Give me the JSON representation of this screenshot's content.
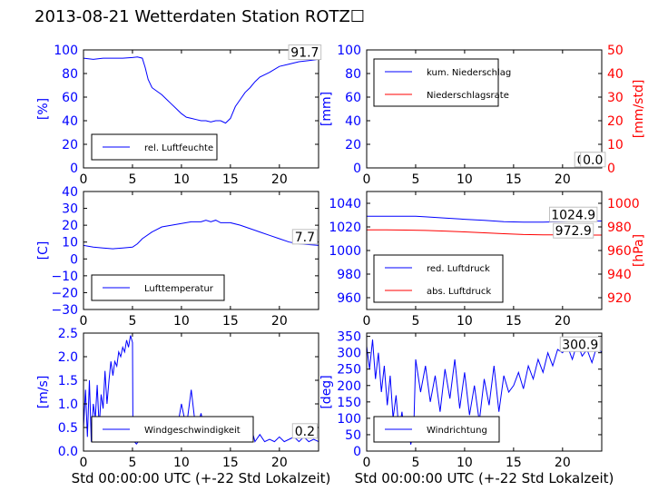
{
  "title": "2013-08-21 Wetterdaten Station ROTZ",
  "title_suffix": "☐",
  "xlabel": "Std 00:00:00 UTC (+-22 Std Lokalzeit)",
  "colors": {
    "blue": "#0000ff",
    "red": "#ff0000",
    "black": "#000000"
  },
  "chart_data": [
    {
      "type": "line",
      "id": "humidity",
      "ylabel": "[%]",
      "xlim": [
        0,
        24
      ],
      "ylim": [
        0,
        100
      ],
      "x_ticks": [
        0,
        5,
        10,
        15,
        20
      ],
      "y_ticks": [
        0,
        20,
        40,
        60,
        80,
        100
      ],
      "annotations": [
        {
          "text": "91.7",
          "x": 22.6,
          "y": 95
        }
      ],
      "legend": {
        "position": "lower-left",
        "entries": [
          "rel. Luftfeuchte"
        ]
      },
      "series": [
        {
          "name": "rel. Luftfeuchte",
          "color": "#0000ff",
          "x": [
            0,
            1,
            2,
            3,
            4,
            5,
            5.5,
            6,
            6.3,
            6.6,
            7,
            7.5,
            8,
            8.5,
            9,
            9.5,
            10,
            10.5,
            11,
            11.5,
            12,
            12.5,
            13,
            13.5,
            14,
            14.5,
            15,
            15.5,
            16,
            16.5,
            17,
            17.5,
            18,
            19,
            20,
            21,
            22,
            23,
            24
          ],
          "y": [
            93,
            92,
            93,
            93,
            93,
            93.5,
            94,
            93,
            85,
            75,
            68,
            65,
            62,
            58,
            54,
            50,
            46,
            43,
            42,
            41,
            40,
            40,
            39,
            40,
            40,
            38,
            42,
            52,
            58,
            64,
            68,
            73,
            77,
            81,
            86,
            88,
            90,
            91,
            92
          ]
        }
      ]
    },
    {
      "type": "line",
      "id": "precipitation",
      "ylabel": "[mm]",
      "ylabel_right": "[mm/std]",
      "xlim": [
        0,
        24
      ],
      "ylim": [
        0,
        100
      ],
      "ylim_right": [
        0,
        50
      ],
      "x_ticks": [
        0,
        5,
        10,
        15,
        20
      ],
      "y_ticks": [
        0,
        20,
        40,
        60,
        80,
        100
      ],
      "y_ticks_right": [
        0,
        10,
        20,
        30,
        40,
        50
      ],
      "annotations": [
        {
          "text": "0.0",
          "x": 22.5,
          "y": 4
        },
        {
          "text": "0.0",
          "x": 23.1,
          "y": 4
        }
      ],
      "legend": {
        "position": "upper-left",
        "entries": [
          "kum. Niederschlag",
          "Niederschlagsrate"
        ]
      },
      "series": [
        {
          "name": "kum. Niederschlag",
          "color": "#0000ff",
          "axis": "left",
          "x": [
            0,
            24
          ],
          "y": [
            0,
            0
          ]
        },
        {
          "name": "Niederschlagsrate",
          "color": "#ff0000",
          "axis": "right",
          "x": [
            0,
            24
          ],
          "y": [
            0,
            0
          ]
        }
      ]
    },
    {
      "type": "line",
      "id": "temperature",
      "ylabel": "[C]",
      "xlim": [
        0,
        24
      ],
      "ylim": [
        -30,
        40
      ],
      "x_ticks": [
        0,
        5,
        10,
        15,
        20
      ],
      "y_ticks": [
        -30,
        -20,
        -10,
        0,
        10,
        20,
        30,
        40
      ],
      "annotations": [
        {
          "text": "7.7",
          "x": 22.6,
          "y": 11
        }
      ],
      "legend": {
        "position": "lower-left",
        "entries": [
          "Lufttemperatur"
        ]
      },
      "series": [
        {
          "name": "Lufttemperatur",
          "color": "#0000ff",
          "x": [
            0,
            1,
            2,
            3,
            4,
            5,
            5.5,
            6,
            7,
            8,
            9,
            10,
            11,
            12,
            12.5,
            13,
            13.5,
            14,
            15,
            16,
            17,
            18,
            19,
            20,
            21,
            22,
            23,
            24
          ],
          "y": [
            8,
            7,
            6.5,
            6,
            6.5,
            7,
            9,
            12,
            16,
            19,
            20,
            21,
            22,
            22,
            23,
            22,
            23,
            21.5,
            21.5,
            20,
            18,
            16,
            14,
            12,
            10,
            9,
            8.5,
            8
          ]
        }
      ]
    },
    {
      "type": "line",
      "id": "pressure",
      "ylim": [
        950,
        1050
      ],
      "ylim_right": [
        910,
        1010
      ],
      "xlim": [
        0,
        24
      ],
      "ylabel_right": "[hPa]",
      "x_ticks": [
        0,
        5,
        10,
        15,
        20
      ],
      "y_ticks": [
        960,
        980,
        1000,
        1020,
        1040
      ],
      "y_ticks_right": [
        920,
        940,
        960,
        980,
        1000
      ],
      "annotations": [
        {
          "text": "1024.9",
          "x": 21.1,
          "y": 1027.5
        },
        {
          "text": "972.9",
          "x": 21.1,
          "y": 1013.7
        }
      ],
      "legend": {
        "position": "lower-left",
        "entries": [
          "red. Luftdruck",
          "abs. Luftdruck"
        ]
      },
      "series": [
        {
          "name": "red. Luftdruck",
          "color": "#0000ff",
          "axis": "left",
          "x": [
            0,
            2,
            4,
            5,
            6,
            8,
            10,
            12,
            14,
            16,
            18,
            20,
            22,
            24
          ],
          "y": [
            1029,
            1029,
            1029,
            1029,
            1028.5,
            1027.5,
            1026.5,
            1025.5,
            1024.5,
            1024,
            1024,
            1024.5,
            1025,
            1025
          ]
        },
        {
          "name": "abs. Luftdruck",
          "color": "#ff0000",
          "axis": "right",
          "x": [
            0,
            2,
            4,
            6,
            8,
            10,
            12,
            14,
            16,
            18,
            20,
            22,
            24
          ],
          "y": [
            977.5,
            977.5,
            977.3,
            977,
            976.5,
            975.8,
            975,
            974.2,
            973.5,
            973.3,
            973.2,
            973.1,
            973.1
          ]
        }
      ]
    },
    {
      "type": "line",
      "id": "wind_speed",
      "ylabel": "[m/s]",
      "xlim": [
        0,
        24
      ],
      "ylim": [
        0,
        2.5
      ],
      "x_ticks": [
        0,
        5,
        10,
        15,
        20
      ],
      "y_ticks": [
        0.0,
        0.5,
        1.0,
        1.5,
        2.0,
        2.5
      ],
      "annotations": [
        {
          "text": "0.2",
          "x": 22.6,
          "y": 0.35
        }
      ],
      "legend": {
        "position": "lower-left",
        "entries": [
          "Windgeschwindigkeit"
        ]
      },
      "series": [
        {
          "name": "Windgeschwindigkeit",
          "color": "#0000ff",
          "x": [
            0,
            0.2,
            0.4,
            0.6,
            0.8,
            1,
            1.2,
            1.4,
            1.6,
            1.8,
            2,
            2.2,
            2.4,
            2.6,
            2.8,
            3,
            3.2,
            3.4,
            3.6,
            3.8,
            4,
            4.2,
            4.4,
            4.6,
            4.8,
            5,
            5.05,
            5.2,
            5.4,
            5.6,
            5.8,
            6,
            6.5,
            7,
            7.5,
            8,
            8.5,
            9,
            9.5,
            10,
            10.5,
            11,
            11.5,
            12,
            12.5,
            13,
            13.5,
            14,
            14.5,
            15,
            15.5,
            16,
            16.5,
            17,
            17.5,
            18,
            18.5,
            19,
            19.5,
            20,
            20.5,
            21,
            21.5,
            22,
            22.5,
            23,
            23.5,
            24
          ],
          "y": [
            0.5,
            1.3,
            0.3,
            1.5,
            0.2,
            1.0,
            0.7,
            1.4,
            0.5,
            1.2,
            0.9,
            1.7,
            1.0,
            1.5,
            1.9,
            1.6,
            1.9,
            1.8,
            2.1,
            2.0,
            2.2,
            2.1,
            2.35,
            2.2,
            2.45,
            2.3,
            0.3,
            0.2,
            0.15,
            0.2,
            0.25,
            0.2,
            0.2,
            0.3,
            0.2,
            0.5,
            0.3,
            0.6,
            0.4,
            1.0,
            0.5,
            1.3,
            0.4,
            0.8,
            0.3,
            0.6,
            0.4,
            0.7,
            0.3,
            0.5,
            0.3,
            0.4,
            0.3,
            0.6,
            0.2,
            0.35,
            0.2,
            0.25,
            0.2,
            0.3,
            0.2,
            0.25,
            0.3,
            0.2,
            0.3,
            0.2,
            0.25,
            0.2
          ]
        }
      ]
    },
    {
      "type": "line",
      "id": "wind_direction",
      "ylabel": "[deg]",
      "xlim": [
        0,
        24
      ],
      "ylim": [
        0,
        360
      ],
      "x_ticks": [
        0,
        5,
        10,
        15,
        20
      ],
      "y_ticks": [
        0,
        50,
        100,
        150,
        200,
        250,
        300,
        350
      ],
      "annotations": [
        {
          "text": "300.9",
          "x": 21.8,
          "y": 315
        }
      ],
      "legend": {
        "position": "lower-left",
        "entries": [
          "Windrichtung"
        ]
      },
      "series": [
        {
          "name": "Windrichtung",
          "color": "#0000ff",
          "x": [
            0,
            0.3,
            0.6,
            0.9,
            1.2,
            1.5,
            1.8,
            2.1,
            2.4,
            2.7,
            3,
            3.3,
            3.6,
            3.9,
            4.2,
            4.5,
            4.8,
            5,
            5.5,
            6,
            6.5,
            7,
            7.5,
            8,
            8.5,
            9,
            9.5,
            10,
            10.5,
            11,
            11.5,
            12,
            12.5,
            13,
            13.5,
            14,
            14.5,
            15,
            15.5,
            16,
            16.5,
            17,
            17.5,
            18,
            18.5,
            19,
            19.5,
            20,
            20.5,
            21,
            21.5,
            22,
            22.5,
            23,
            23.5,
            24
          ],
          "y": [
            320,
            250,
            340,
            220,
            300,
            180,
            260,
            140,
            230,
            100,
            170,
            60,
            120,
            40,
            90,
            20,
            60,
            280,
            180,
            260,
            150,
            230,
            120,
            250,
            160,
            280,
            130,
            240,
            110,
            200,
            90,
            220,
            140,
            260,
            120,
            230,
            180,
            200,
            240,
            190,
            260,
            220,
            280,
            240,
            300,
            260,
            310,
            300,
            320,
            280,
            330,
            290,
            310,
            270,
            320,
            300
          ]
        }
      ]
    }
  ]
}
